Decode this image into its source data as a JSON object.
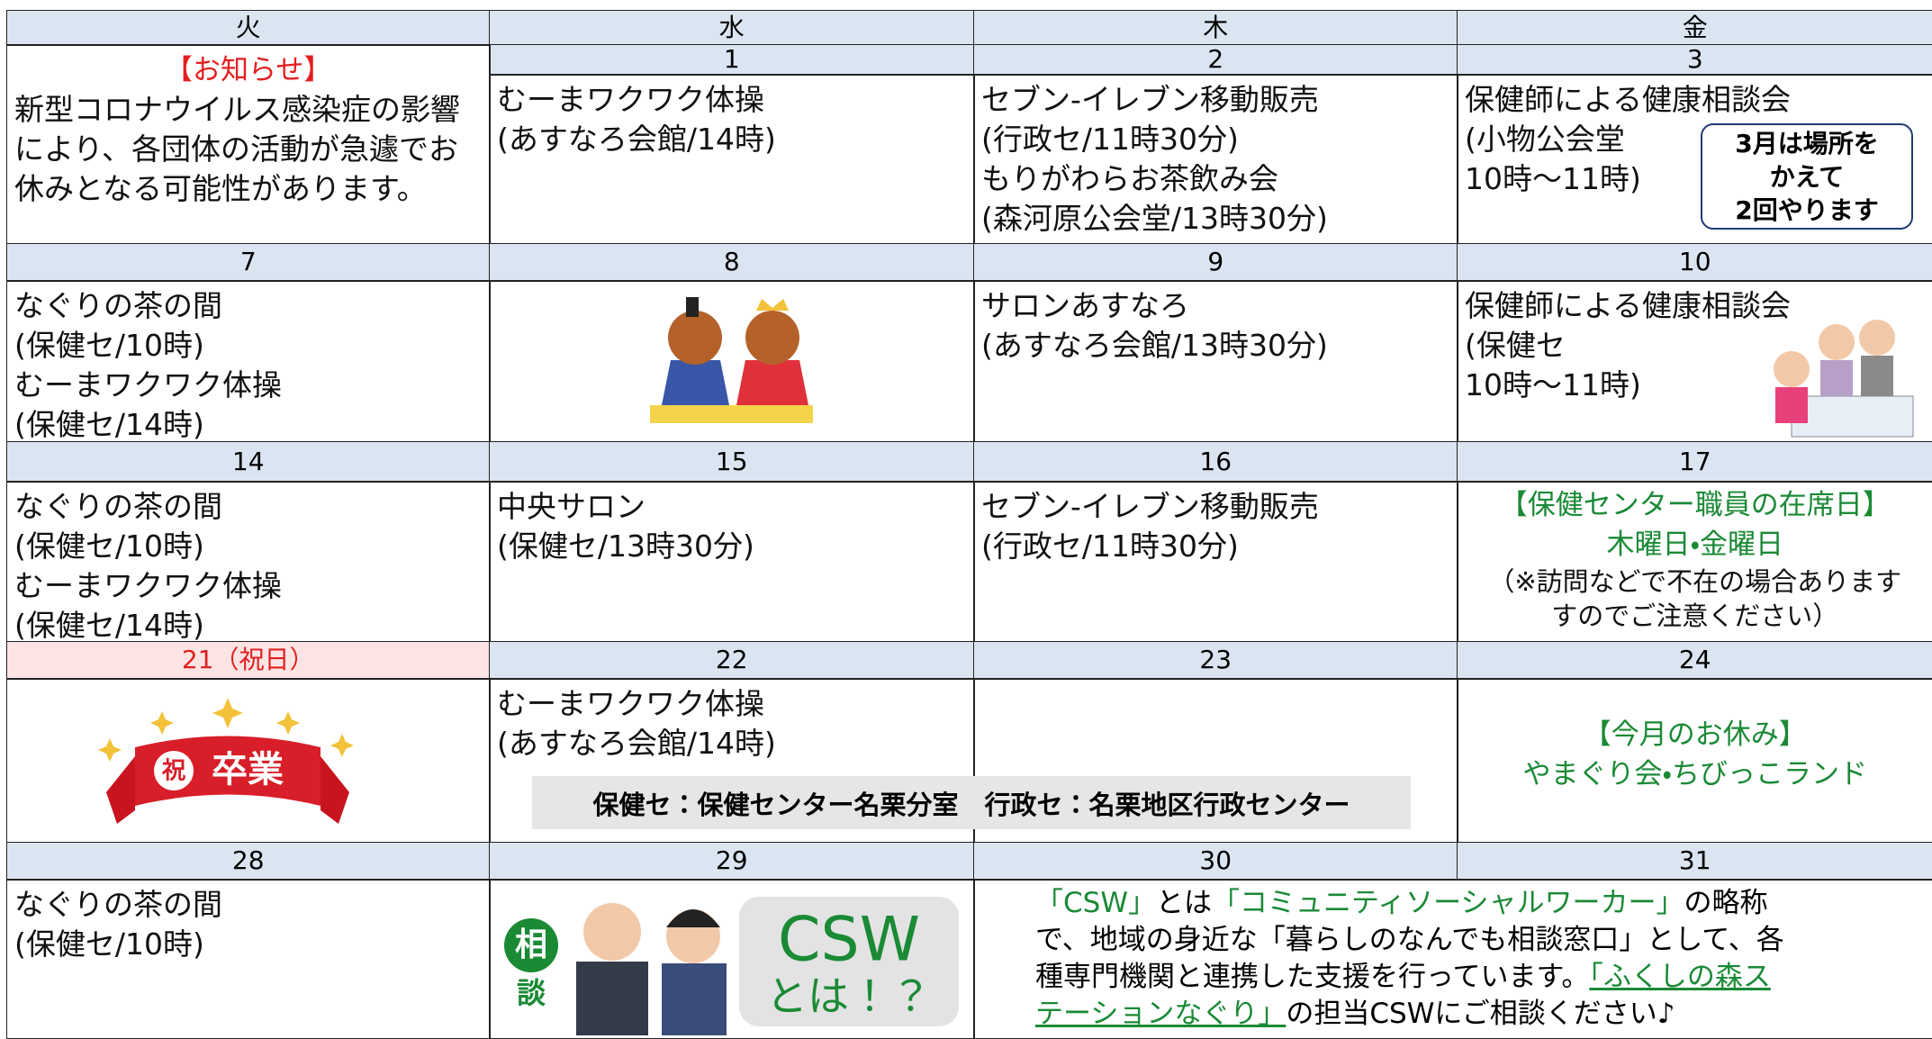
{
  "days": [
    "火",
    "水",
    "木",
    "金"
  ],
  "weeks": [
    {
      "dates": [
        null,
        "1",
        "2",
        "3"
      ],
      "cells": [
        {
          "heading": "【お知らせ】",
          "lines": [
            "新型コロナウイルス感染症の影響",
            "により、各団体の活動が急遽でお",
            "休みとなる可能性があります。"
          ]
        },
        {
          "lines": [
            "むーまワクワク体操",
            "(あすなろ会館/14時)"
          ]
        },
        {
          "lines": [
            "セブン-イレブン移動販売",
            "(行政セ/11時30分)",
            "もりがわらお茶飲み会",
            "(森河原公会堂/13時30分)"
          ]
        },
        {
          "lines": [
            "保健師による健康相談会",
            "(小物公会堂",
            "10時～11時)"
          ],
          "callout": [
            "3月は場所を",
            "かえて",
            "2回やります"
          ]
        }
      ]
    },
    {
      "dates": [
        "7",
        "8",
        "9",
        "10"
      ],
      "cells": [
        {
          "lines": [
            "なぐりの茶の間",
            "(保健セ/10時)",
            "むーまワクワク体操",
            "(保健セ/14時)"
          ]
        },
        {},
        {
          "lines": [
            "サロンあすなろ",
            "(あすなろ会館/13時30分)"
          ]
        },
        {
          "lines": [
            "保健師による健康相談会",
            "(保健セ",
            "10時～11時)"
          ]
        }
      ]
    },
    {
      "dates": [
        "14",
        "15",
        "16",
        "17"
      ],
      "cells": [
        {
          "lines": [
            "なぐりの茶の間",
            "(保健セ/10時)",
            "むーまワクワク体操",
            "(保健セ/14時)"
          ]
        },
        {
          "lines": [
            "中央サロン",
            "(保健セ/13時30分)"
          ]
        },
        {
          "lines": [
            "セブン-イレブン移動販売",
            "(行政セ/11時30分)"
          ]
        },
        {
          "green": [
            "【保健センター職員の在席日】",
            "木曜日・金曜日"
          ],
          "note": [
            "（※訪問などで不在の場合あります",
            "すのでご注意ください）"
          ]
        }
      ]
    },
    {
      "dates": [
        "21（祝日）",
        "22",
        "23",
        "24"
      ],
      "cells": [
        {
          "badge": "祝",
          "banner": "卒業"
        },
        {
          "lines": [
            "むーまワクワク体操",
            "(あすなろ会館/14時)"
          ]
        },
        {},
        {
          "green": [
            "【今月のお休み】",
            "やまぐり会・ちびっこランド"
          ]
        }
      ],
      "legend": "保健セ：保健センター名栗分室　行政セ：名栗地区行政センター"
    },
    {
      "dates": [
        "28",
        "29",
        "30",
        "31"
      ],
      "cells": [
        {
          "lines": [
            "なぐりの茶の間",
            "(保健セ/10時)"
          ]
        },
        {
          "tags": [
            "相",
            "談"
          ],
          "csw_title": "CSW",
          "csw_sub": "とは！？"
        }
      ],
      "csw_note": [
        [
          {
            "text": "「CSW」",
            "style": "green"
          },
          {
            "text": "とは",
            "style": "plain"
          },
          {
            "text": "「コミュニティソーシャルワーカー」",
            "style": "green"
          },
          {
            "text": "の略称",
            "style": "plain"
          }
        ],
        [
          {
            "text": "で、地域の身近な「暮らしのなんでも相談窓口」として、各",
            "style": "plain"
          }
        ],
        [
          {
            "text": "種専門機関と連携した支援を行っています。",
            "style": "plain"
          },
          {
            "text": "「ふくしの森ス",
            "style": "link"
          }
        ],
        [
          {
            "text": "テーションなぐり」",
            "style": "link"
          },
          {
            "text": "の担当CSWにご相談ください♪",
            "style": "plain"
          }
        ]
      ]
    }
  ]
}
